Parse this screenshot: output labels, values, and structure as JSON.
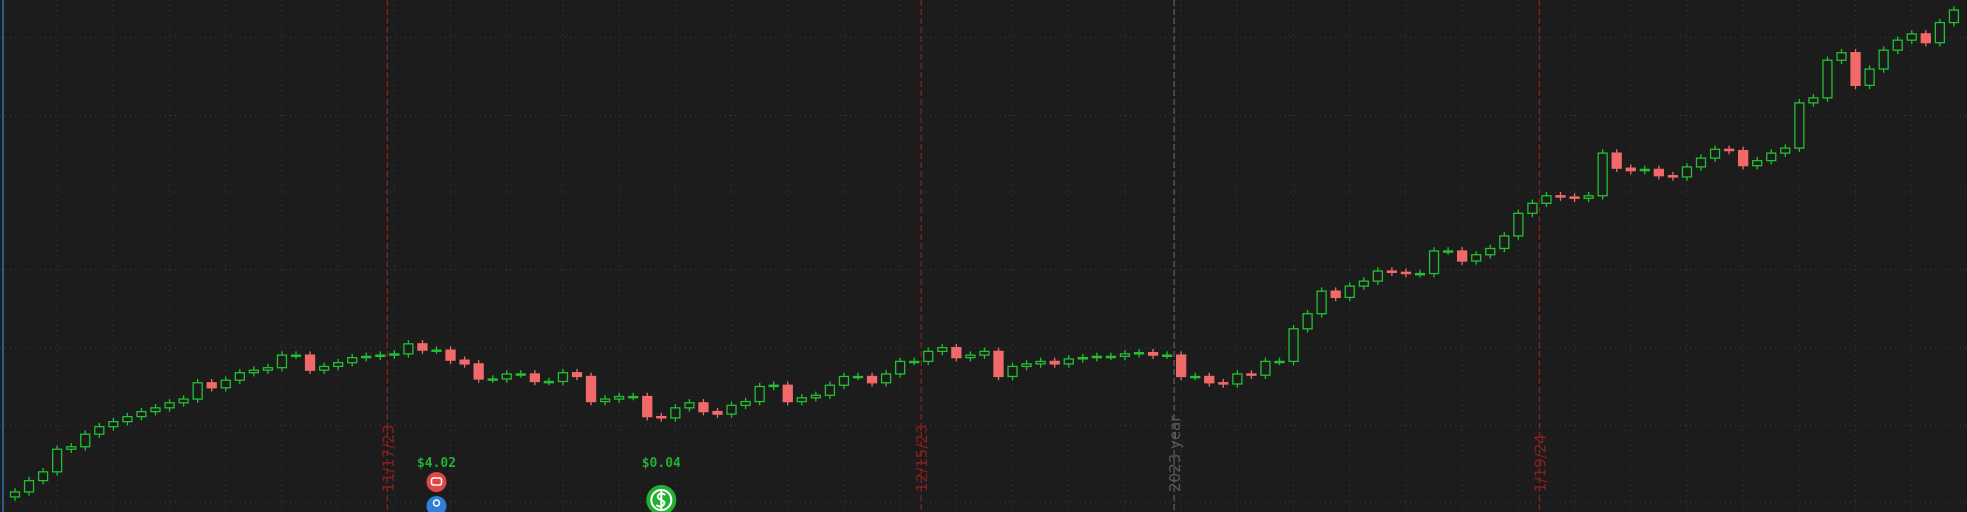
{
  "chart_data": {
    "type": "candlestick",
    "ylim": [
      -8,
      400
    ],
    "ygrid": [
      0,
      61,
      123,
      185,
      247,
      308,
      370
    ],
    "grid": true,
    "up_color": "#22c032",
    "down_color": "#f06a6a",
    "open": [
      4,
      8,
      17,
      24,
      42,
      44,
      54,
      60,
      64,
      68,
      72,
      75,
      79,
      82,
      95,
      91,
      97,
      103,
      105,
      107,
      117,
      117,
      105,
      108,
      111,
      115,
      116,
      117,
      118,
      126,
      121,
      121,
      113,
      110,
      98,
      98,
      102,
      102,
      96,
      96,
      103,
      100,
      80,
      82,
      84,
      84,
      68,
      67,
      75,
      79,
      72,
      70,
      77,
      80,
      92,
      93,
      80,
      83,
      85,
      93,
      100,
      100,
      95,
      102,
      112,
      112,
      120,
      123,
      115,
      117,
      120,
      100,
      108,
      110,
      112,
      110,
      114,
      115,
      116,
      116,
      118,
      119,
      117,
      117,
      100,
      100,
      95,
      94,
      102,
      101,
      112,
      112,
      138,
      150,
      168,
      163,
      172,
      176,
      184,
      183,
      182,
      182,
      200,
      200,
      192,
      197,
      202,
      212,
      230,
      238,
      244,
      243,
      242,
      244,
      278,
      266,
      264,
      265,
      260,
      259,
      267,
      274,
      281,
      280,
      268,
      272,
      278,
      282,
      318,
      322,
      352,
      358,
      332,
      345,
      360,
      368,
      373,
      366,
      382
    ],
    "high": [
      11,
      20,
      27,
      45,
      47,
      57,
      63,
      67,
      71,
      75,
      78,
      82,
      85,
      98,
      98,
      100,
      106,
      108,
      110,
      120,
      120,
      120,
      111,
      114,
      118,
      119,
      120,
      121,
      129,
      129,
      124,
      124,
      116,
      113,
      101,
      105,
      105,
      105,
      99,
      106,
      106,
      103,
      85,
      87,
      87,
      87,
      71,
      78,
      82,
      82,
      75,
      80,
      83,
      95,
      96,
      96,
      86,
      88,
      96,
      103,
      103,
      103,
      105,
      115,
      115,
      123,
      126,
      126,
      120,
      123,
      123,
      111,
      113,
      115,
      115,
      117,
      118,
      119,
      119,
      121,
      122,
      122,
      120,
      120,
      103,
      103,
      98,
      105,
      105,
      115,
      115,
      141,
      153,
      171,
      171,
      175,
      179,
      187,
      187,
      186,
      185,
      203,
      203,
      203,
      200,
      205,
      215,
      233,
      241,
      247,
      247,
      246,
      247,
      281,
      281,
      269,
      268,
      268,
      263,
      270,
      277,
      284,
      284,
      283,
      275,
      281,
      285,
      321,
      325,
      355,
      361,
      361,
      348,
      363,
      371,
      376,
      376,
      385,
      395
    ],
    "low": [
      1,
      5,
      14,
      21,
      39,
      41,
      51,
      57,
      61,
      65,
      69,
      72,
      76,
      79,
      88,
      88,
      94,
      100,
      102,
      104,
      114,
      102,
      102,
      105,
      108,
      112,
      113,
      114,
      115,
      118,
      118,
      110,
      107,
      95,
      95,
      95,
      99,
      93,
      93,
      93,
      97,
      77,
      77,
      79,
      81,
      65,
      64,
      64,
      72,
      69,
      67,
      67,
      74,
      77,
      89,
      77,
      77,
      80,
      82,
      90,
      97,
      92,
      92,
      99,
      109,
      109,
      117,
      112,
      112,
      114,
      97,
      97,
      105,
      107,
      107,
      107,
      111,
      112,
      113,
      113,
      115,
      114,
      114,
      97,
      97,
      92,
      91,
      91,
      98,
      98,
      109,
      109,
      135,
      147,
      160,
      160,
      169,
      173,
      180,
      179,
      179,
      179,
      197,
      189,
      189,
      194,
      199,
      209,
      227,
      235,
      240,
      239,
      239,
      241,
      263,
      261,
      261,
      257,
      256,
      256,
      264,
      271,
      277,
      265,
      265,
      269,
      275,
      279,
      315,
      319,
      349,
      329,
      329,
      342,
      357,
      365,
      363,
      363,
      379
    ],
    "close": [
      8,
      17,
      24,
      42,
      44,
      54,
      60,
      64,
      68,
      72,
      75,
      79,
      82,
      95,
      91,
      97,
      103,
      105,
      107,
      117,
      117,
      105,
      108,
      111,
      115,
      116,
      117,
      118,
      126,
      121,
      121,
      113,
      110,
      98,
      98,
      102,
      102,
      96,
      96,
      103,
      100,
      80,
      82,
      84,
      84,
      68,
      67,
      75,
      79,
      72,
      70,
      77,
      80,
      92,
      93,
      80,
      83,
      85,
      93,
      100,
      100,
      95,
      102,
      112,
      112,
      120,
      123,
      115,
      117,
      120,
      100,
      108,
      110,
      112,
      110,
      114,
      115,
      116,
      116,
      118,
      119,
      117,
      117,
      100,
      100,
      95,
      94,
      102,
      101,
      112,
      112,
      138,
      150,
      168,
      163,
      172,
      176,
      184,
      183,
      182,
      182,
      200,
      200,
      192,
      197,
      202,
      212,
      230,
      238,
      244,
      243,
      242,
      244,
      278,
      266,
      264,
      265,
      260,
      259,
      267,
      274,
      281,
      280,
      268,
      272,
      278,
      282,
      318,
      322,
      352,
      358,
      332,
      345,
      360,
      368,
      373,
      366,
      382,
      392
    ],
    "markers": [
      {
        "label": "11/17/23",
        "index": 26.5,
        "color": "#8b1f1f"
      },
      {
        "label": "12/15/23",
        "index": 64.5,
        "color": "#8b1f1f"
      },
      {
        "label": "2023 year",
        "index": 82.5,
        "color": "#5a5a5a"
      },
      {
        "label": "1/19/24",
        "index": 108.5,
        "color": "#8b1f1f"
      }
    ],
    "events": [
      {
        "label": "$4.02",
        "index": 30,
        "color": "#e04848"
      },
      {
        "label": "$0.04",
        "index": 46,
        "color": "#22b030"
      }
    ]
  }
}
